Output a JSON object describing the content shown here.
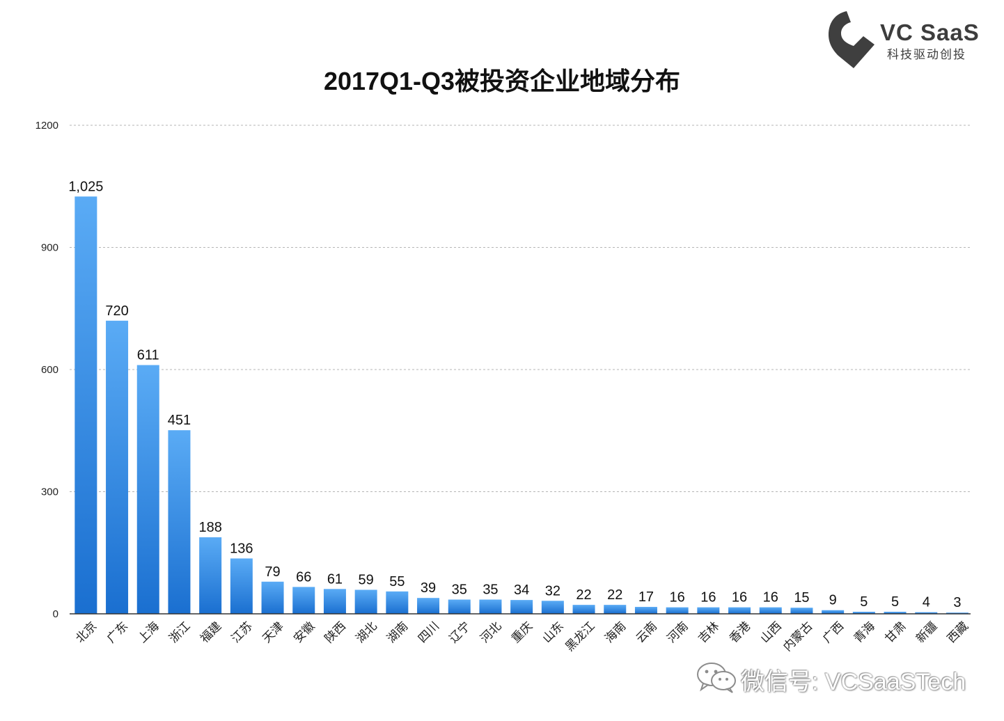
{
  "brand": {
    "name": "VC SaaS",
    "tagline": "科技驱动创投"
  },
  "colors": {
    "bar_top": "#5aabf5",
    "bar_bottom": "#1a6fd0",
    "grid": "#b5b5b5",
    "axis": "#333333"
  },
  "watermark": {
    "icon": "wechat-icon",
    "text": "微信号: VCSaaSTech"
  },
  "chart_data": {
    "type": "bar",
    "title": "2017Q1-Q3被投资企业地域分布",
    "xlabel": "",
    "ylabel": "",
    "ylim": [
      0,
      1200
    ],
    "yticks": [
      0,
      300,
      600,
      900,
      1200
    ],
    "grid": true,
    "categories": [
      "北京",
      "广东",
      "上海",
      "浙江",
      "福建",
      "江苏",
      "天津",
      "安徽",
      "陕西",
      "湖北",
      "湖南",
      "四川",
      "辽宁",
      "河北",
      "重庆",
      "山东",
      "黑龙江",
      "海南",
      "云南",
      "河南",
      "吉林",
      "香港",
      "山西",
      "内蒙古",
      "广西",
      "青海",
      "甘肃",
      "新疆",
      "西藏"
    ],
    "values": [
      1025,
      720,
      611,
      451,
      188,
      136,
      79,
      66,
      61,
      59,
      55,
      39,
      35,
      35,
      34,
      32,
      22,
      22,
      17,
      16,
      16,
      16,
      16,
      15,
      9,
      5,
      5,
      4,
      3
    ],
    "value_labels": [
      "1,025",
      "720",
      "611",
      "451",
      "188",
      "136",
      "79",
      "66",
      "61",
      "59",
      "55",
      "39",
      "35",
      "35",
      "34",
      "32",
      "22",
      "22",
      "17",
      "16",
      "16",
      "16",
      "16",
      "15",
      "9",
      "5",
      "5",
      "4",
      "3"
    ]
  }
}
